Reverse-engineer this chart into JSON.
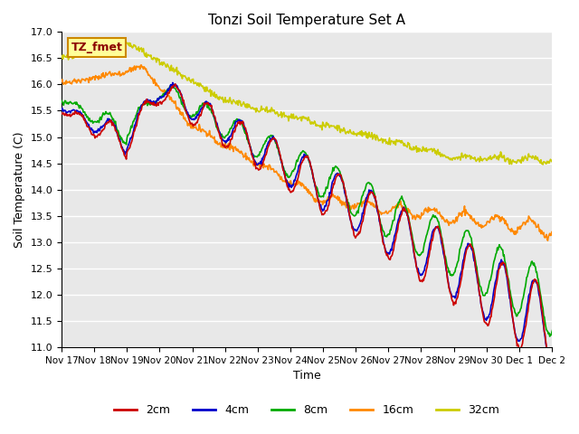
{
  "title": "Tonzi Soil Temperature Set A",
  "xlabel": "Time",
  "ylabel": "Soil Temperature (C)",
  "ylim": [
    11.0,
    17.0
  ],
  "yticks": [
    11.0,
    11.5,
    12.0,
    12.5,
    13.0,
    13.5,
    14.0,
    14.5,
    15.0,
    15.5,
    16.0,
    16.5,
    17.0
  ],
  "xtick_positions": [
    0,
    1,
    2,
    3,
    4,
    5,
    6,
    7,
    8,
    9,
    10,
    11,
    12,
    13,
    14,
    15
  ],
  "xtick_labels": [
    "Nov 17",
    "Nov 18",
    "Nov 19",
    "Nov 20",
    "Nov 21",
    "Nov 22",
    "Nov 23",
    "Nov 24",
    "Nov 25",
    "Nov 26",
    "Nov 27",
    "Nov 28",
    "Nov 29",
    "Nov 30",
    "Dec 1",
    "Dec 2"
  ],
  "colors": {
    "2cm": "#cc0000",
    "4cm": "#0000cc",
    "8cm": "#00aa00",
    "16cm": "#ff8800",
    "32cm": "#cccc00"
  },
  "legend_label": "TZ_fmet",
  "legend_box_color": "#ffff99",
  "legend_box_border": "#cc8800",
  "bg_color": "#e8e8e8",
  "grid_color": "#ffffff"
}
